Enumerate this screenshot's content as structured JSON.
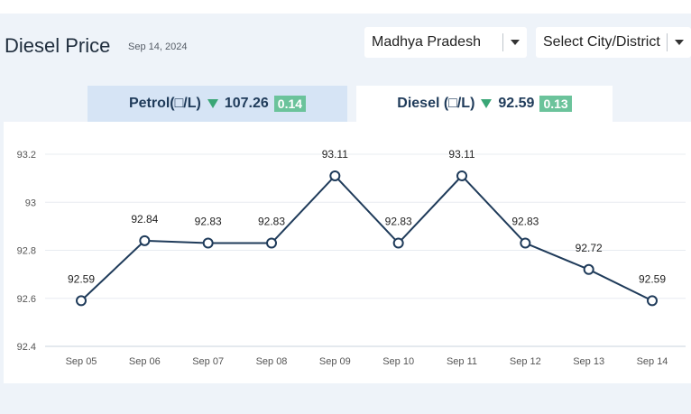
{
  "header": {
    "title": "Diesel Price",
    "date": "Sep 14, 2024"
  },
  "filters": {
    "state": "Madhya Pradesh",
    "city": "Select City/District"
  },
  "tabs": [
    {
      "fuel": "Petrol(□/L)",
      "price": "107.26",
      "change": "0.14",
      "direction": "down",
      "active": false
    },
    {
      "fuel": "Diesel (□/L)",
      "price": "92.59",
      "change": "0.13",
      "direction": "down",
      "active": true
    }
  ],
  "colors": {
    "line": "#1f3b5a",
    "active_tab": "#ffffff",
    "inactive_tab": "#d6e4f5",
    "badge": "#6bc39b",
    "down_arrow": "#3aa676"
  },
  "chart_data": {
    "type": "line",
    "categories": [
      "Sep 05",
      "Sep 06",
      "Sep 07",
      "Sep 08",
      "Sep 09",
      "Sep 10",
      "Sep 11",
      "Sep 12",
      "Sep 13",
      "Sep 14"
    ],
    "series": [
      {
        "values": [
          92.59,
          92.84,
          92.83,
          92.83,
          93.11,
          92.83,
          93.11,
          92.83,
          92.72,
          92.59
        ]
      }
    ],
    "point_labels": [
      "92.59",
      "92.84",
      "92.83",
      "92.83",
      "93.11",
      "92.83",
      "93.11",
      "92.83",
      "92.72",
      "92.59"
    ],
    "ylim": [
      92.4,
      93.2
    ],
    "yticks": [
      92.4,
      92.6,
      92.8,
      93,
      93.2
    ],
    "ytick_labels": [
      "92.4",
      "92.6",
      "92.8",
      "93",
      "93.2"
    ],
    "grid": true,
    "markers": "hollow-circle"
  }
}
